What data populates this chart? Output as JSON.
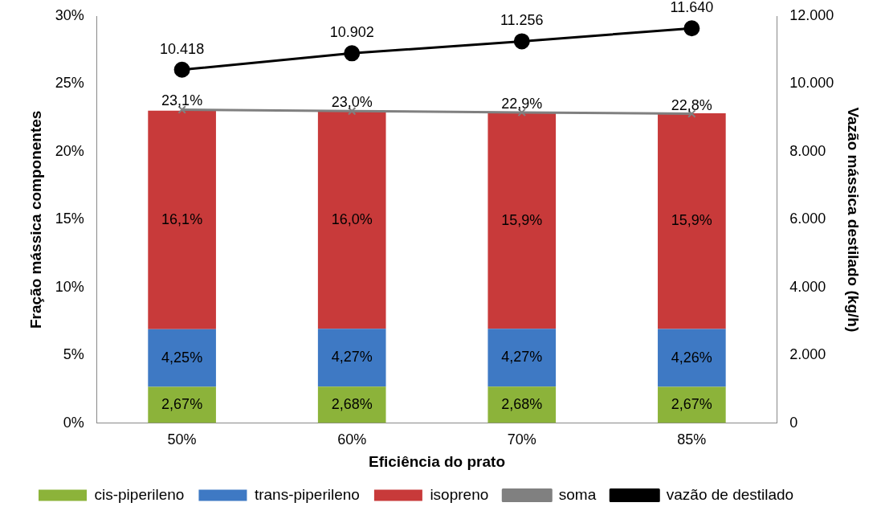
{
  "chart_data": {
    "type": "bar",
    "stacked": true,
    "xlabel": "Eficiência do prato",
    "ylabel": "Fração mássica componentes",
    "y2label": "Vazão mássica destilado (kg/h)",
    "categories": [
      "50%",
      "60%",
      "70%",
      "85%"
    ],
    "ylim": [
      0,
      30
    ],
    "yticks": [
      {
        "value": 0,
        "label": "0%"
      },
      {
        "value": 5,
        "label": "5%"
      },
      {
        "value": 10,
        "label": "10%"
      },
      {
        "value": 15,
        "label": "15%"
      },
      {
        "value": 20,
        "label": "20%"
      },
      {
        "value": 25,
        "label": "25%"
      },
      {
        "value": 30,
        "label": "30%"
      }
    ],
    "y2lim": [
      0,
      12000
    ],
    "y2ticks": [
      0,
      {
        "value": 2000,
        "label": "2.000"
      },
      {
        "value": 4000,
        "label": "4.000"
      },
      {
        "value": 6000,
        "label": "6.000"
      },
      {
        "value": 8000,
        "label": "8.000"
      },
      {
        "value": 10000,
        "label": "10.000"
      },
      {
        "value": 12000,
        "label": "12.000"
      }
    ],
    "grid": false,
    "legend": "bottom",
    "series": [
      {
        "name": "cis-piperileno",
        "color": "#8cb33a",
        "values": [
          2.67,
          2.68,
          2.68,
          2.67
        ],
        "value_labels": [
          "2,67%",
          "2,68%",
          "2,68%",
          "2,67%"
        ]
      },
      {
        "name": "trans-piperileno",
        "color": "#3e79c4",
        "values": [
          4.25,
          4.27,
          4.27,
          4.26
        ],
        "value_labels": [
          "4,25%",
          "4,27%",
          "4,27%",
          "4,26%"
        ]
      },
      {
        "name": "isopreno",
        "color": "#c83a3a",
        "values": [
          16.1,
          16.0,
          15.9,
          15.9
        ],
        "value_labels": [
          "16,1%",
          "16,0%",
          "15,9%",
          "15,9%"
        ]
      },
      {
        "name": "soma",
        "type": "line",
        "color": "#808080",
        "marker": "cross",
        "values": [
          23.1,
          23.0,
          22.9,
          22.8
        ],
        "value_labels": [
          "23,1%",
          "23,0%",
          "22,9%",
          "22,8%"
        ]
      },
      {
        "name": "vazão de destilado",
        "type": "line",
        "axis": "y2",
        "color": "#000000",
        "marker": "circle",
        "values": [
          10418,
          10902,
          11256,
          11640
        ],
        "value_labels": [
          "10.418",
          "10.902",
          "11.256",
          "11.640"
        ]
      }
    ]
  }
}
